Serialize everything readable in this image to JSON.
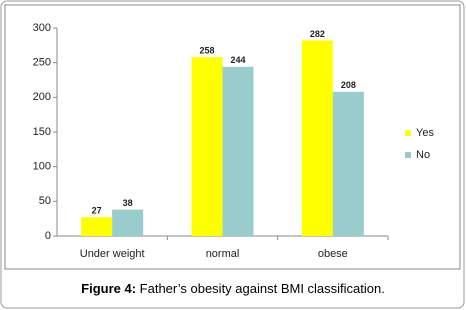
{
  "chart_data": {
    "type": "bar",
    "categories": [
      "Under weight",
      "normal",
      "obese"
    ],
    "series": [
      {
        "name": "Yes",
        "color": "#ffff00",
        "values": [
          27,
          258,
          282
        ]
      },
      {
        "name": "No",
        "color": "#99cccc",
        "values": [
          38,
          244,
          208
        ]
      }
    ],
    "ylim": [
      0,
      300
    ],
    "yticks": [
      0,
      50,
      100,
      150,
      200,
      250,
      300
    ],
    "grid": false,
    "legend": "right",
    "caption": {
      "label": "Figure 4:",
      "text": "Father’s obesity against BMI classification."
    }
  }
}
